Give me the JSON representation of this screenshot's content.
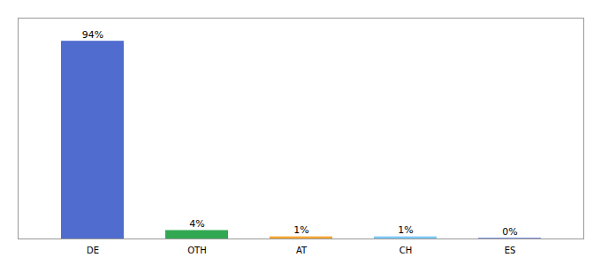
{
  "chart_data": {
    "type": "bar",
    "categories": [
      "DE",
      "OTH",
      "AT",
      "CH",
      "ES"
    ],
    "values": [
      94,
      4,
      1,
      1,
      0.3
    ],
    "value_labels": [
      "94%",
      "4%",
      "1%",
      "1%",
      "0%"
    ],
    "colors": [
      "#4f6cce",
      "#33a853",
      "#f4a533",
      "#7cc8f5",
      "#4f6cce"
    ],
    "ylim": [
      0,
      105
    ],
    "data_labels": true,
    "tick_labels": "x"
  }
}
